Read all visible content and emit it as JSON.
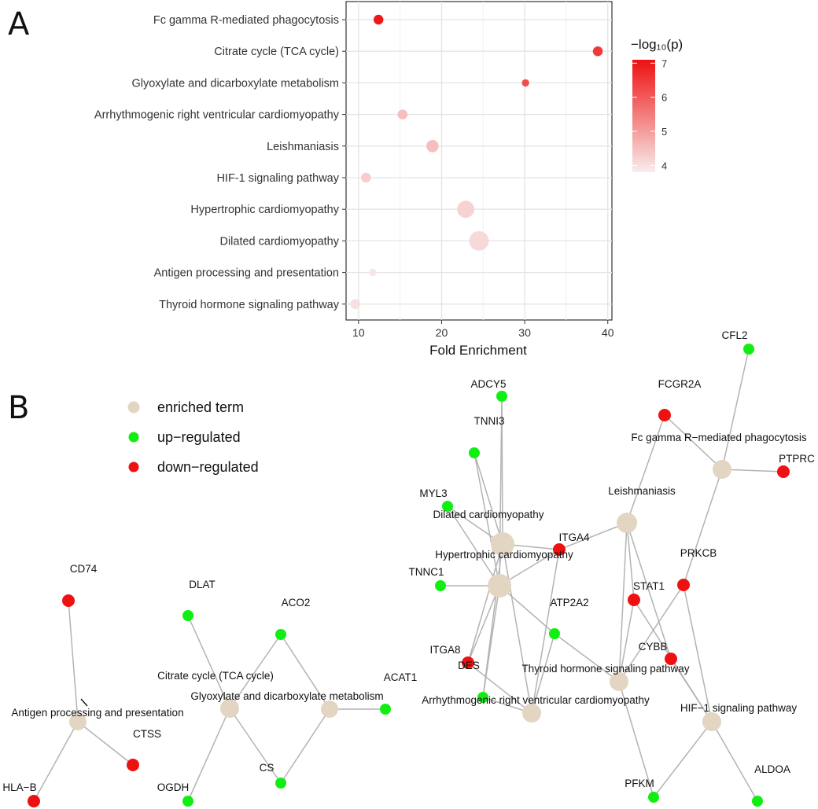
{
  "panel_a_label": "A",
  "panel_b_label": "B",
  "chart_data": [
    {
      "type": "scatter",
      "title": "",
      "xlabel": "Fold Enrichment",
      "ylabel": "",
      "xlim": [
        8.5,
        40.5
      ],
      "xticks": [
        10,
        20,
        30,
        40
      ],
      "grid": true,
      "categories": [
        "Fc gamma R-mediated phagocytosis",
        "Citrate cycle (TCA cycle)",
        "Glyoxylate and dicarboxylate metabolism",
        "Arrhythmogenic right ventricular cardiomyopathy",
        "Leishmaniasis",
        "HIF-1 signaling pathway",
        "Hypertrophic cardiomyopathy",
        "Dilated cardiomyopathy",
        "Antigen processing and presentation",
        "Thyroid hormone signaling pathway"
      ],
      "x": [
        12.4,
        38.8,
        30.1,
        15.3,
        18.9,
        10.9,
        22.9,
        24.5,
        11.7,
        9.6
      ],
      "color_values": [
        7.0,
        6.5,
        6.2,
        4.5,
        4.5,
        4.3,
        4.2,
        4.1,
        3.9,
        4.0
      ],
      "size_values": [
        3,
        3,
        2,
        3,
        4,
        3,
        6,
        7,
        2,
        3
      ],
      "color_scale": {
        "title": "−log₁₀(p)",
        "range": [
          3.8,
          7.1
        ],
        "ticks": [
          4,
          5,
          6,
          7
        ],
        "low_color": "#f8eded",
        "high_color": "#ee1111"
      },
      "legend_position": "right"
    },
    {
      "type": "network",
      "legend": [
        {
          "label": "enriched term",
          "color": "#e2d6c2"
        },
        {
          "label": "up−regulated",
          "color": "#11ee11"
        },
        {
          "label": "down−regulated",
          "color": "#ee1111"
        }
      ],
      "terms": [
        "Fc gamma R−mediated phagocytosis",
        "Leishmaniasis",
        "Dilated cardiomyopathy",
        "Hypertrophic cardiomyopathy",
        "Thyroid hormone signaling pathway",
        "Arrhythmogenic right ventricular cardiomyopathy",
        "HIF−1 signaling pathway",
        "Citrate cycle (TCA cycle)",
        "Glyoxylate and dicarboxylate metabolism",
        "Antigen processing and presentation"
      ],
      "up_regulated": [
        "CFL2",
        "ADCY5",
        "TNNI3",
        "MYL3",
        "TNNC1",
        "ATP2A2",
        "DES",
        "ACAT1",
        "DLAT",
        "ACO2",
        "CS",
        "OGDH",
        "PFKM",
        "ALDOA"
      ],
      "down_regulated": [
        "FCGR2A",
        "PTPRC",
        "ITGA4",
        "PRKCB",
        "STAT1",
        "CYBB",
        "ITGA8",
        "CD74",
        "CTSS",
        "HLA−B"
      ]
    }
  ]
}
